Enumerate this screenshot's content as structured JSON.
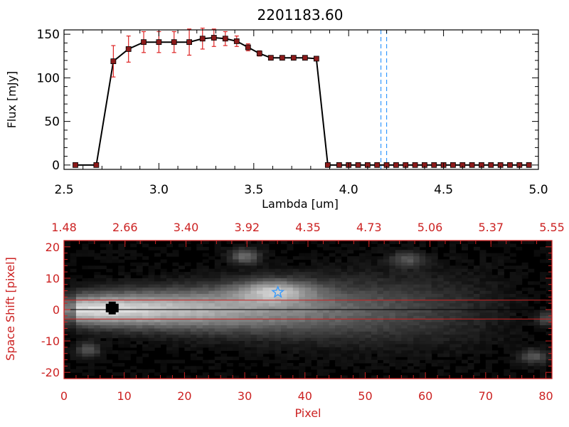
{
  "chart_data": [
    {
      "type": "line",
      "title": "2201183.60",
      "xlabel": "Lambda [um]",
      "ylabel": "Flux [mJy]",
      "xlim": [
        2.5,
        5.0
      ],
      "ylim": [
        -5,
        155
      ],
      "x_ticks": [
        "2.5",
        "3.0",
        "3.5",
        "4.0",
        "4.5",
        "5.0"
      ],
      "y_ticks": [
        "0",
        "50",
        "100",
        "150"
      ],
      "series": [
        {
          "x": [
            2.56,
            2.67,
            2.76,
            2.84,
            2.92,
            3.0,
            3.08,
            3.16,
            3.23,
            3.29,
            3.35,
            3.41,
            3.47,
            3.53,
            3.59,
            3.65,
            3.71,
            3.77,
            3.83,
            3.89,
            3.95,
            4.0,
            4.05,
            4.1,
            4.15,
            4.2,
            4.25,
            4.3,
            4.35,
            4.4,
            4.45,
            4.5,
            4.55,
            4.6,
            4.65,
            4.7,
            4.75,
            4.8,
            4.85,
            4.9,
            4.95
          ],
          "y": [
            0,
            0,
            119,
            133,
            141,
            141,
            141,
            141,
            145,
            146,
            145,
            142,
            135,
            128,
            123,
            123,
            123,
            123,
            122,
            0,
            0,
            0,
            0,
            0,
            0,
            0,
            0,
            0,
            0,
            0,
            0,
            0,
            0,
            0,
            0,
            0,
            0,
            0,
            0,
            0,
            0
          ],
          "yerr": [
            0,
            0,
            18,
            15,
            12,
            12,
            12,
            15,
            12,
            10,
            8,
            6,
            4,
            3,
            2,
            2,
            2,
            2,
            2,
            0,
            0,
            0,
            0,
            0,
            0,
            0,
            0,
            0,
            0,
            0,
            0,
            0,
            0,
            0,
            0,
            0,
            0,
            0,
            0,
            0,
            0
          ],
          "color": "#000000",
          "marker_color": "#8b1a1a",
          "errorbar_color": "#dd2222"
        }
      ],
      "vlines": [
        4.17,
        4.2
      ],
      "vline_color": "#3399ff",
      "grid": false
    },
    {
      "type": "heatmap",
      "xlabel": "Pixel",
      "ylabel": "Space Shift [pixel]",
      "xlim": [
        0,
        81
      ],
      "ylim": [
        -22,
        22
      ],
      "x_ticks": [
        "0",
        "10",
        "20",
        "30",
        "40",
        "50",
        "60",
        "70",
        "80"
      ],
      "y_ticks": [
        "-20",
        "-10",
        "0",
        "10",
        "20"
      ],
      "top_axis_ticks": [
        "1.48",
        "2.66",
        "3.40",
        "3.92",
        "4.35",
        "4.73",
        "5.06",
        "5.37",
        "5.55"
      ],
      "hlines": [
        3,
        0,
        -3
      ],
      "star_marker": {
        "x": 35.5,
        "y": 5.5
      },
      "peak_marker": {
        "x": 8,
        "y": 0.5
      },
      "axis_color": "#cc2222",
      "colormap": "grayscale",
      "grid": false
    }
  ]
}
